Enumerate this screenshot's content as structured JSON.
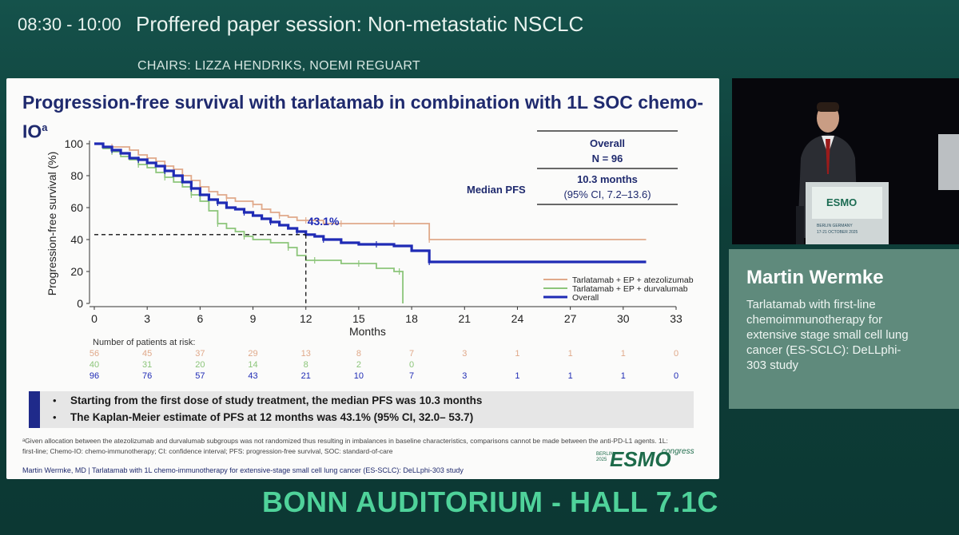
{
  "header": {
    "time": "08:30 - 10:00",
    "session": "Proffered paper session: Non-metastatic NSCLC",
    "chairs": "CHAIRS: LIZZA HENDRIKS, NOEMI REGUART"
  },
  "slide": {
    "title": "Progression-free survival with tarlatamab in combination with 1L SOC chemo-IO",
    "title_sup": "a",
    "summary_table": {
      "header1": "Overall",
      "header2": "N = 96",
      "row_label": "Median PFS",
      "row_value1": "10.3 months",
      "row_value2": "(95% CI, 7.2–13.6)"
    },
    "bullets": [
      "Starting from the first dose of study treatment, the median PFS was 10.3 months",
      "The Kaplan-Meier estimate of PFS at 12 months was 43.1% (95% CI, 32.0– 53.7)"
    ],
    "footnote": "ᵃGiven allocation between the atezolizumab and durvalumab subgroups was not randomized thus resulting in imbalances in baseline characteristics, comparisons cannot be made between the anti-PD-L1 agents. 1L: first-line; Chemo-IO: chemo-immunotherapy; CI: confidence interval; PFS: progression-free survival, SOC: standard-of-care",
    "author_footer": "Martin Wermke, MD | Tarlatamab with 1L chemo-immunotherapy for extensive-stage small cell lung cancer (ES-SCLC): DeLLphi-303 study",
    "logo": {
      "brand": "ESMO",
      "tag": "congress",
      "place": "BERLIN",
      "year": "2025"
    }
  },
  "chart_data": {
    "type": "line",
    "subtype": "kaplan-meier",
    "xlabel": "Months",
    "ylabel": "Progression-free survival (%)",
    "x_ticks": [
      0,
      3,
      6,
      9,
      12,
      15,
      18,
      21,
      24,
      27,
      30,
      33
    ],
    "y_ticks": [
      0,
      20,
      40,
      60,
      80,
      100
    ],
    "xlim": [
      0,
      33
    ],
    "ylim": [
      0,
      100
    ],
    "annotation": {
      "label": "43.1%",
      "x": 12,
      "y": 43.1
    },
    "series": [
      {
        "name": "Tarlatamab + EP + atezolizumab",
        "color": "#e0a98a",
        "x": [
          0,
          0.5,
          1,
          2,
          2.5,
          3,
          3.5,
          4,
          4.5,
          5,
          5.5,
          6,
          6.5,
          7,
          7.5,
          8,
          8.5,
          9,
          9.5,
          10,
          10.5,
          11,
          11.5,
          12,
          12.5,
          13,
          14,
          15,
          16,
          17,
          18,
          18.5,
          19,
          20,
          25,
          31.3
        ],
        "y": [
          100,
          98,
          98,
          96,
          93,
          91,
          89,
          86,
          84,
          80,
          77,
          73,
          70,
          68,
          66,
          64,
          64,
          62,
          59,
          57,
          55,
          54,
          52,
          52,
          52,
          50,
          50,
          50,
          50,
          50,
          50,
          50,
          40,
          40,
          40,
          40
        ]
      },
      {
        "name": "Tarlatamab + EP + durvalumab",
        "color": "#8cc57a",
        "x": [
          0,
          0.5,
          1,
          1.5,
          2,
          2.5,
          3,
          3.5,
          4,
          4.5,
          5,
          5.5,
          6,
          6.5,
          7,
          7.5,
          8,
          8.5,
          9,
          10,
          11,
          11.5,
          12,
          12.5,
          13,
          14,
          15,
          16,
          17,
          17.3,
          17.5
        ],
        "y": [
          100,
          97,
          95,
          92,
          90,
          87,
          85,
          82,
          79,
          76,
          73,
          68,
          64,
          58,
          50,
          47,
          45,
          42,
          40,
          38,
          35,
          30,
          27,
          27,
          27,
          25,
          25,
          22,
          20,
          20,
          0
        ]
      },
      {
        "name": "Overall",
        "color": "#1f2bb5",
        "x": [
          0,
          0.5,
          1,
          1.5,
          2,
          2.5,
          3,
          3.5,
          4,
          4.5,
          5,
          5.5,
          6,
          6.5,
          7,
          7.5,
          8,
          8.5,
          9,
          9.5,
          10,
          10.5,
          11,
          11.5,
          12,
          12.5,
          13,
          14,
          15,
          16,
          17,
          18,
          19,
          20,
          25,
          31.3
        ],
        "y": [
          100,
          98,
          96,
          94,
          91,
          90,
          88,
          86,
          83,
          80,
          76,
          72,
          68,
          65,
          63,
          60,
          59,
          57,
          55,
          53,
          51,
          49,
          47,
          45,
          43.1,
          42,
          40,
          38,
          37,
          37,
          36,
          33,
          26,
          26,
          26,
          26
        ]
      }
    ],
    "risk_table": {
      "title": "Number of patients at risk:",
      "times": [
        0,
        3,
        6,
        9,
        12,
        15,
        18,
        21,
        24,
        27,
        30,
        33
      ],
      "rows": [
        {
          "color": "#e0a98a",
          "values": [
            56,
            45,
            37,
            29,
            13,
            8,
            7,
            3,
            1,
            1,
            1,
            0
          ]
        },
        {
          "color": "#8cc57a",
          "values": [
            40,
            31,
            20,
            14,
            8,
            2,
            0
          ]
        },
        {
          "color": "#1f2bb5",
          "values": [
            96,
            76,
            57,
            43,
            21,
            10,
            7,
            3,
            1,
            1,
            1,
            0
          ]
        }
      ]
    }
  },
  "bottom_banner": "BONN AUDITORIUM - HALL 7.1C",
  "speaker": {
    "name": "Martin Wermke",
    "talk": "Tarlatamab with first-line chemoimmunotherapy for extensive stage small cell lung cancer (ES-SCLC): DeLLphi-303 study"
  },
  "video": {
    "podium_brand": "ESMO",
    "podium_place": "BERLIN GERMANY",
    "podium_dates": "17-21 OCTOBER 2025"
  }
}
